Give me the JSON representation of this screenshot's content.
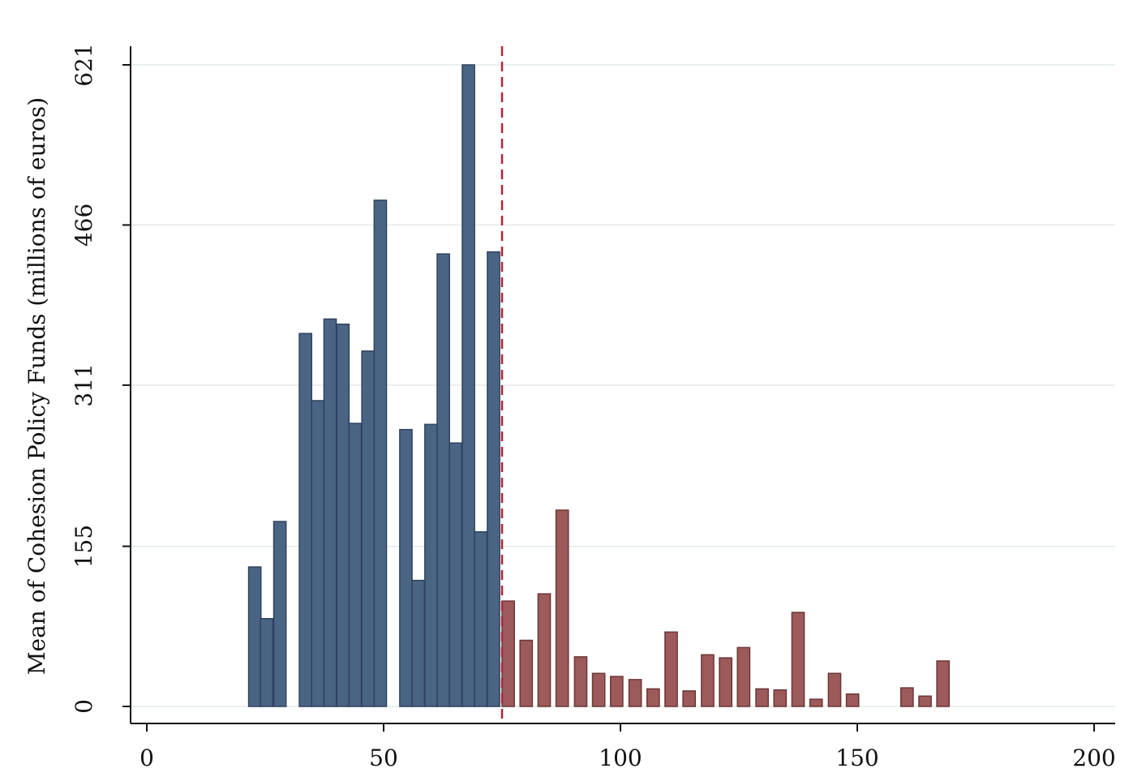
{
  "chart_data": {
    "type": "bar",
    "title": "",
    "xlabel": "",
    "ylabel": "Mean of Cohesion Policy Funds (millions of euros)",
    "xlim": [
      -3,
      202
    ],
    "ylim": [
      0,
      621
    ],
    "x_ticks": [
      0,
      50,
      100,
      150,
      200
    ],
    "y_ticks": [
      0,
      155,
      311,
      466,
      621
    ],
    "grid": true,
    "bin_width": 2.6,
    "cutoff_x": 75,
    "series": [
      {
        "color": "#4a6484",
        "bins": [
          {
            "x": 21.5,
            "y": 135
          },
          {
            "x": 24.0,
            "y": 85
          },
          {
            "x": 26.8,
            "y": 179
          },
          {
            "x": 32.2,
            "y": 361
          },
          {
            "x": 34.8,
            "y": 296
          },
          {
            "x": 37.4,
            "y": 375
          },
          {
            "x": 40.1,
            "y": 370
          },
          {
            "x": 42.7,
            "y": 274
          },
          {
            "x": 45.4,
            "y": 344
          },
          {
            "x": 48.0,
            "y": 490
          },
          {
            "x": 53.4,
            "y": 268
          },
          {
            "x": 56.0,
            "y": 122
          },
          {
            "x": 58.7,
            "y": 273
          },
          {
            "x": 61.3,
            "y": 438
          },
          {
            "x": 63.9,
            "y": 255
          },
          {
            "x": 66.6,
            "y": 621
          },
          {
            "x": 69.2,
            "y": 169
          },
          {
            "x": 71.9,
            "y": 440
          }
        ]
      },
      {
        "color": "#9c5a5a",
        "bins": [
          {
            "x": 75.0,
            "y": 102
          },
          {
            "x": 78.8,
            "y": 64
          },
          {
            "x": 82.6,
            "y": 109
          },
          {
            "x": 86.4,
            "y": 190
          },
          {
            "x": 90.3,
            "y": 48
          },
          {
            "x": 94.1,
            "y": 32
          },
          {
            "x": 97.9,
            "y": 29
          },
          {
            "x": 101.8,
            "y": 26
          },
          {
            "x": 105.6,
            "y": 17
          },
          {
            "x": 109.4,
            "y": 72
          },
          {
            "x": 113.2,
            "y": 15
          },
          {
            "x": 117.1,
            "y": 50
          },
          {
            "x": 120.9,
            "y": 47
          },
          {
            "x": 124.7,
            "y": 57
          },
          {
            "x": 128.6,
            "y": 17
          },
          {
            "x": 132.4,
            "y": 16
          },
          {
            "x": 136.2,
            "y": 91
          },
          {
            "x": 140.0,
            "y": 7
          },
          {
            "x": 143.9,
            "y": 32
          },
          {
            "x": 147.7,
            "y": 12
          },
          {
            "x": 159.2,
            "y": 18
          },
          {
            "x": 163.0,
            "y": 10
          },
          {
            "x": 166.8,
            "y": 44
          }
        ]
      }
    ]
  }
}
